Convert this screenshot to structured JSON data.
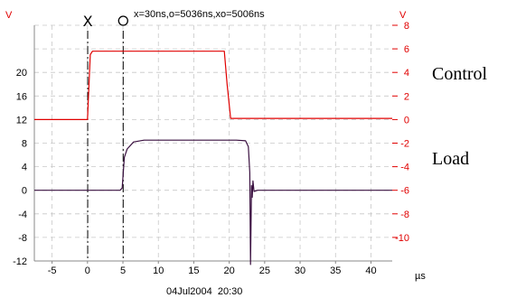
{
  "chart_data": {
    "type": "line",
    "title": "x=30ns,o=5036ns,xo=5006ns",
    "xlabel": "",
    "xunit": "µs",
    "yunit_left": "V",
    "yunit_right": "V",
    "timestamp": "04Jul2004  20:30",
    "xlim": [
      -7.5,
      43
    ],
    "ylim_left": [
      -12,
      28
    ],
    "ylim_right": [
      -12,
      8
    ],
    "grid": true,
    "x_ticks": [
      -5,
      0,
      5,
      10,
      15,
      20,
      25,
      30,
      35,
      40
    ],
    "x_tick_labels": [
      "-5",
      "0",
      "5",
      "10",
      "15",
      "20",
      "25",
      "30",
      "35",
      "40"
    ],
    "y_left_ticks": [
      20,
      16,
      12,
      8,
      4,
      0,
      -4,
      -8,
      -12
    ],
    "y_left_tick_labels": [
      "20",
      "16",
      "12",
      "8",
      "4",
      "0",
      "-4",
      "-8",
      "-12"
    ],
    "y_right_ticks": [
      8,
      6,
      4,
      2,
      0,
      -2,
      -4,
      -6,
      -8,
      -10
    ],
    "y_right_tick_labels": [
      "8",
      "6",
      "4",
      "2",
      "0",
      "-2",
      "-4",
      "-6",
      "-8",
      "-10"
    ],
    "cursors": [
      {
        "label": "X",
        "x": 0.03
      },
      {
        "label": "O",
        "x": 5.036
      }
    ],
    "series": [
      {
        "name": "Control",
        "axis": "right",
        "color": "#e00000",
        "x": [
          -7.5,
          0.0,
          0.4,
          0.7,
          19.3,
          19.7,
          20.2,
          43
        ],
        "y": [
          0.0,
          0.0,
          5.5,
          5.8,
          5.8,
          3.0,
          0.1,
          0.1
        ]
      },
      {
        "name": "Load",
        "axis": "right",
        "color": "#3a1040",
        "x": [
          -7.5,
          4.6,
          4.9,
          5.2,
          5.6,
          6.5,
          8.0,
          21.0,
          22.3,
          22.7,
          22.9,
          23.0,
          23.15,
          23.25,
          23.35,
          23.5,
          24.0,
          24.5,
          43
        ],
        "y": [
          -6.0,
          -6.0,
          -5.8,
          -3.2,
          -2.5,
          -1.9,
          -1.75,
          -1.75,
          -1.8,
          -2.3,
          -4.5,
          -12.3,
          -5.6,
          -6.6,
          -5.2,
          -6.1,
          -6.0,
          -6.0,
          -6.0
        ]
      }
    ],
    "trace_labels": [
      "Control",
      "Load"
    ]
  },
  "colors": {
    "right_axis": "#e00000",
    "left_axis": "#000000",
    "grid": "#c8c8c8",
    "cursor": "#000000"
  }
}
